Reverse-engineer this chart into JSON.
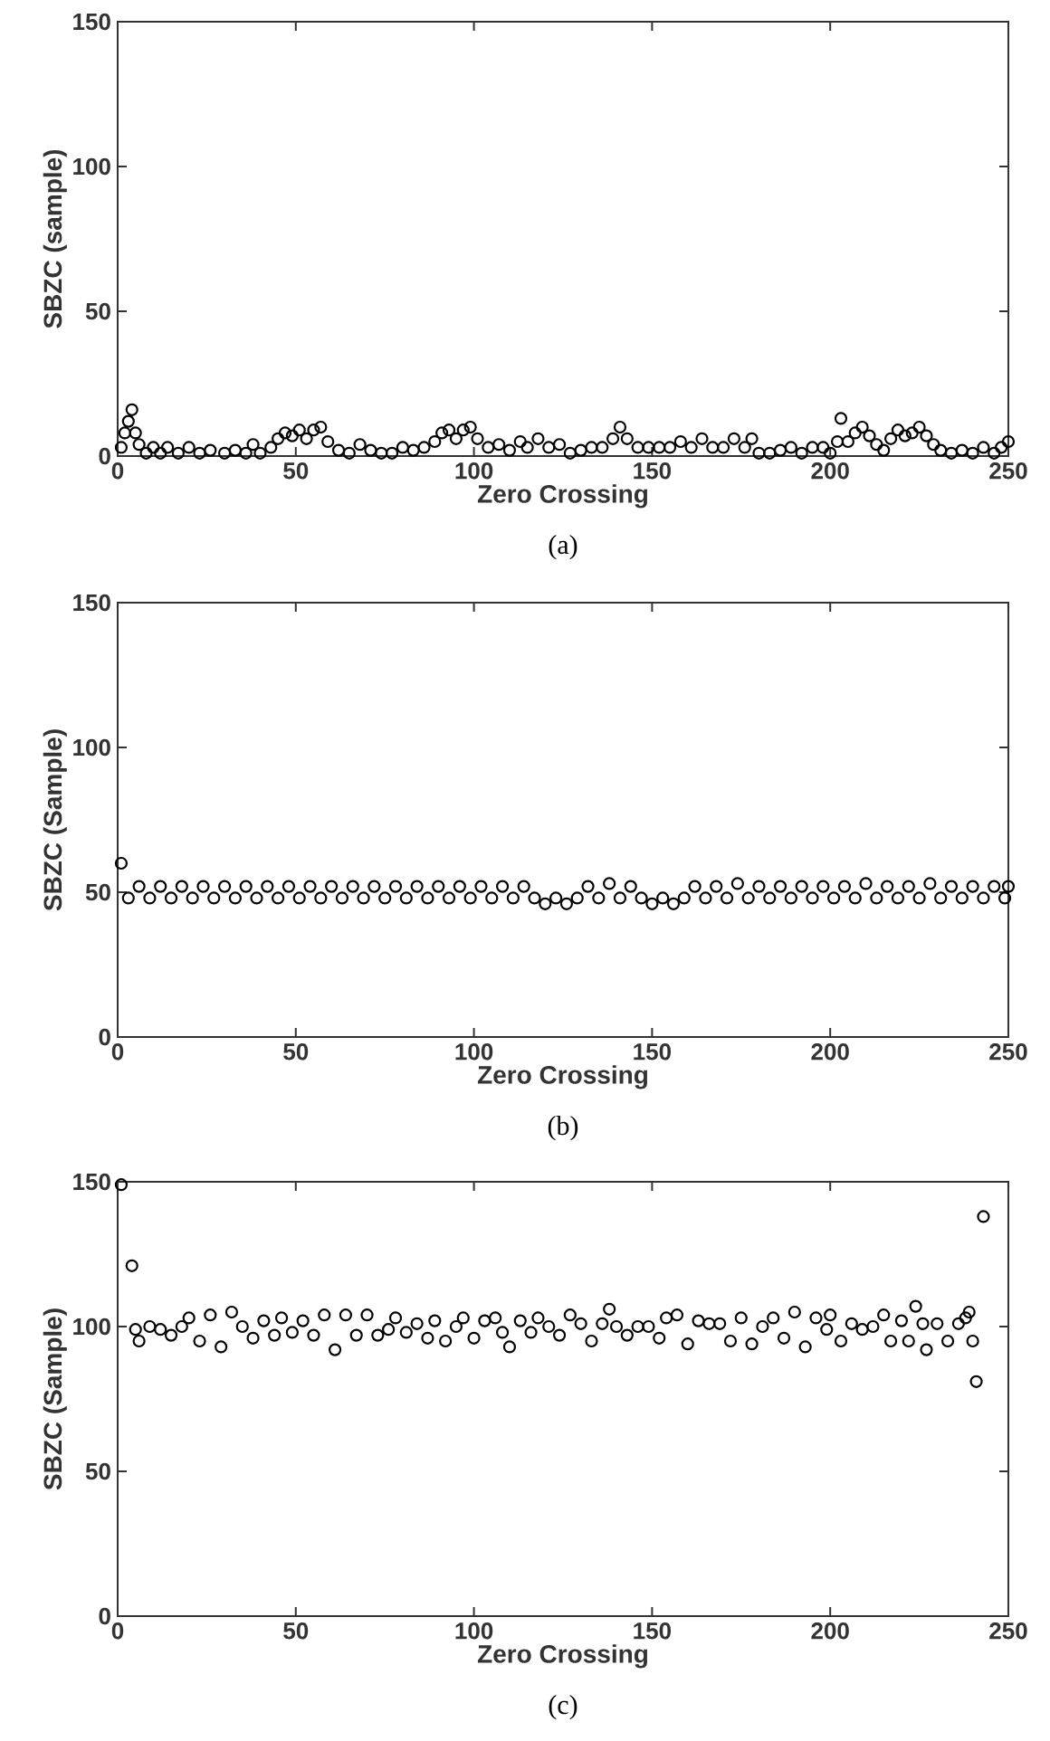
{
  "chart_data": [
    {
      "type": "scatter",
      "xlabel": "Zero Crossing",
      "ylabel": "SBZC (sample)",
      "annotations": [
        "(a)"
      ],
      "xlim": [
        0,
        250
      ],
      "ylim": [
        0,
        150
      ],
      "xticks": [
        0,
        50,
        100,
        150,
        200,
        250
      ],
      "yticks": [
        0,
        50,
        100,
        150
      ],
      "marker": "circle",
      "grid": false,
      "series": [
        {
          "color": "#000000",
          "x": [
            1,
            2,
            3,
            4,
            5,
            6,
            8,
            10,
            12,
            14,
            17,
            20,
            23,
            26,
            30,
            33,
            36,
            38,
            40,
            43,
            45,
            47,
            49,
            51,
            53,
            55,
            57,
            59,
            62,
            65,
            68,
            71,
            74,
            77,
            80,
            83,
            86,
            89,
            91,
            93,
            95,
            97,
            99,
            101,
            104,
            107,
            110,
            113,
            115,
            118,
            121,
            124,
            127,
            130,
            133,
            136,
            139,
            141,
            143,
            146,
            149,
            152,
            155,
            158,
            161,
            164,
            167,
            170,
            173,
            176,
            178,
            180,
            183,
            186,
            189,
            192,
            195,
            198,
            200,
            202,
            203,
            205,
            207,
            209,
            211,
            213,
            215,
            217,
            219,
            221,
            223,
            225,
            227,
            229,
            231,
            234,
            237,
            240,
            243,
            246,
            248,
            250
          ],
          "values": [
            3,
            8,
            12,
            16,
            8,
            4,
            1,
            3,
            1,
            3,
            1,
            3,
            1,
            2,
            1,
            2,
            1,
            4,
            1,
            3,
            6,
            8,
            7,
            9,
            6,
            9,
            10,
            5,
            2,
            1,
            4,
            2,
            1,
            1,
            3,
            2,
            3,
            5,
            8,
            9,
            6,
            9,
            10,
            6,
            3,
            4,
            2,
            5,
            3,
            6,
            3,
            4,
            1,
            2,
            3,
            3,
            6,
            10,
            6,
            3,
            3,
            3,
            3,
            5,
            3,
            6,
            3,
            3,
            6,
            3,
            6,
            1,
            1,
            2,
            3,
            1,
            3,
            3,
            1,
            5,
            13,
            5,
            8,
            10,
            7,
            4,
            2,
            6,
            9,
            7,
            8,
            10,
            7,
            4,
            2,
            1,
            2,
            1,
            3,
            1,
            3,
            5
          ]
        }
      ]
    },
    {
      "type": "scatter",
      "xlabel": "Zero Crossing",
      "ylabel": "SBZC (Sample)",
      "annotations": [
        "(b)"
      ],
      "xlim": [
        0,
        250
      ],
      "ylim": [
        0,
        150
      ],
      "xticks": [
        0,
        50,
        100,
        150,
        200,
        250
      ],
      "yticks": [
        0,
        50,
        100,
        150
      ],
      "marker": "circle",
      "grid": false,
      "series": [
        {
          "color": "#000000",
          "x": [
            1,
            3,
            6,
            9,
            12,
            15,
            18,
            21,
            24,
            27,
            30,
            33,
            36,
            39,
            42,
            45,
            48,
            51,
            54,
            57,
            60,
            63,
            66,
            69,
            72,
            75,
            78,
            81,
            84,
            87,
            90,
            93,
            96,
            99,
            102,
            105,
            108,
            111,
            114,
            117,
            120,
            123,
            126,
            129,
            132,
            135,
            138,
            141,
            144,
            147,
            150,
            153,
            156,
            159,
            162,
            165,
            168,
            171,
            174,
            177,
            180,
            183,
            186,
            189,
            192,
            195,
            198,
            201,
            204,
            207,
            210,
            213,
            216,
            219,
            222,
            225,
            228,
            231,
            234,
            237,
            240,
            243,
            246,
            249,
            250
          ],
          "values": [
            60,
            48,
            52,
            48,
            52,
            48,
            52,
            48,
            52,
            48,
            52,
            48,
            52,
            48,
            52,
            48,
            52,
            48,
            52,
            48,
            52,
            48,
            52,
            48,
            52,
            48,
            52,
            48,
            52,
            48,
            52,
            48,
            52,
            48,
            52,
            48,
            52,
            48,
            52,
            48,
            46,
            48,
            46,
            48,
            52,
            48,
            53,
            48,
            52,
            48,
            46,
            48,
            46,
            48,
            52,
            48,
            52,
            48,
            53,
            48,
            52,
            48,
            52,
            48,
            52,
            48,
            52,
            48,
            52,
            48,
            53,
            48,
            52,
            48,
            52,
            48,
            53,
            48,
            52,
            48,
            52,
            48,
            52,
            48,
            52
          ]
        }
      ]
    },
    {
      "type": "scatter",
      "xlabel": "Zero Crossing",
      "ylabel": "SBZC (Sample)",
      "annotations": [
        "(c)"
      ],
      "xlim": [
        0,
        250
      ],
      "ylim": [
        0,
        150
      ],
      "xticks": [
        0,
        50,
        100,
        150,
        200,
        250
      ],
      "yticks": [
        0,
        50,
        100,
        150
      ],
      "marker": "circle",
      "grid": false,
      "series": [
        {
          "color": "#000000",
          "x": [
            1,
            4,
            5,
            6,
            9,
            12,
            15,
            18,
            20,
            23,
            26,
            29,
            32,
            35,
            38,
            41,
            44,
            46,
            49,
            52,
            55,
            58,
            61,
            64,
            67,
            70,
            73,
            76,
            78,
            81,
            84,
            87,
            89,
            92,
            95,
            97,
            100,
            103,
            106,
            108,
            110,
            113,
            116,
            118,
            121,
            124,
            127,
            130,
            133,
            136,
            138,
            140,
            143,
            146,
            149,
            152,
            154,
            157,
            160,
            163,
            166,
            169,
            172,
            175,
            178,
            181,
            184,
            187,
            190,
            193,
            196,
            199,
            200,
            203,
            206,
            209,
            212,
            215,
            217,
            220,
            222,
            224,
            226,
            227,
            230,
            233,
            236,
            238,
            239,
            240,
            241,
            243
          ],
          "values": [
            149,
            121,
            99,
            95,
            100,
            99,
            97,
            100,
            103,
            95,
            104,
            93,
            105,
            100,
            96,
            102,
            97,
            103,
            98,
            102,
            97,
            104,
            92,
            104,
            97,
            104,
            97,
            99,
            103,
            98,
            101,
            96,
            102,
            95,
            100,
            103,
            96,
            102,
            103,
            98,
            93,
            102,
            98,
            103,
            100,
            97,
            104,
            101,
            95,
            101,
            106,
            100,
            97,
            100,
            100,
            96,
            103,
            104,
            94,
            102,
            101,
            101,
            95,
            103,
            94,
            100,
            103,
            96,
            105,
            93,
            103,
            99,
            104,
            95,
            101,
            99,
            100,
            104,
            95,
            102,
            95,
            107,
            101,
            92,
            101,
            95,
            101,
            103,
            105,
            95,
            81,
            138
          ]
        }
      ]
    }
  ]
}
